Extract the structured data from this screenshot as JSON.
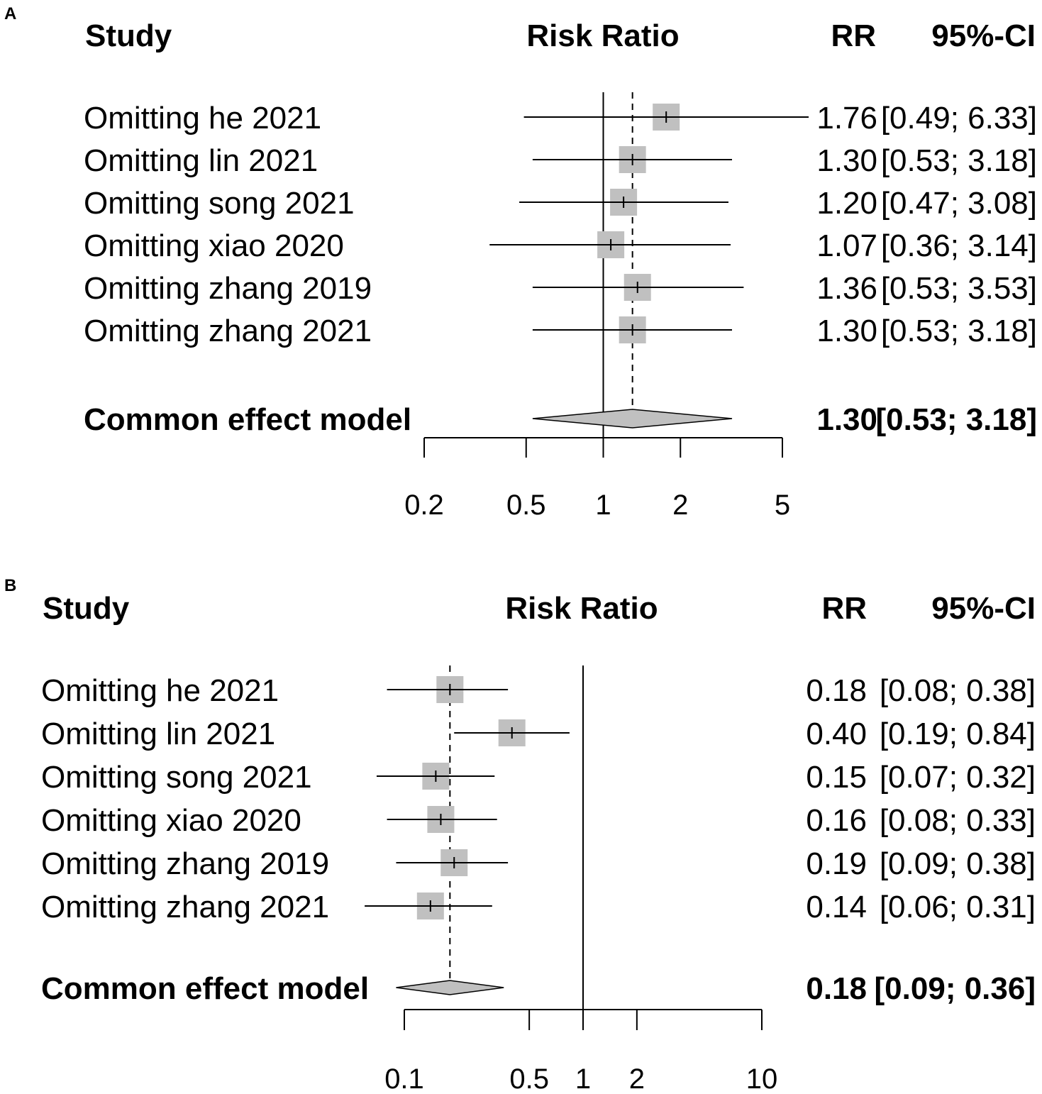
{
  "chart_data": [
    {
      "type": "forest",
      "panel": "A",
      "headers": {
        "study": "Study",
        "effect": "Risk Ratio",
        "rr": "RR",
        "ci": "95%-CI"
      },
      "x_scale": "log",
      "xlim": [
        0.2,
        5
      ],
      "ticks": [
        0.2,
        0.5,
        1,
        2,
        5
      ],
      "tick_labels": [
        "0.2",
        "0.5",
        "1",
        "2",
        "5"
      ],
      "reference_line": 1,
      "pooled_line": 1.3,
      "studies": [
        {
          "label": "Omitting he 2021",
          "rr": 1.76,
          "lo": 0.49,
          "hi": 6.33,
          "rr_text": "1.76",
          "ci_text": "[0.49; 6.33]"
        },
        {
          "label": "Omitting lin 2021",
          "rr": 1.3,
          "lo": 0.53,
          "hi": 3.18,
          "rr_text": "1.30",
          "ci_text": "[0.53; 3.18]"
        },
        {
          "label": "Omitting song 2021",
          "rr": 1.2,
          "lo": 0.47,
          "hi": 3.08,
          "rr_text": "1.20",
          "ci_text": "[0.47; 3.08]"
        },
        {
          "label": "Omitting xiao 2020",
          "rr": 1.07,
          "lo": 0.36,
          "hi": 3.14,
          "rr_text": "1.07",
          "ci_text": "[0.36; 3.14]"
        },
        {
          "label": "Omitting zhang 2019",
          "rr": 1.36,
          "lo": 0.53,
          "hi": 3.53,
          "rr_text": "1.36",
          "ci_text": "[0.53; 3.53]"
        },
        {
          "label": "Omitting zhang 2021",
          "rr": 1.3,
          "lo": 0.53,
          "hi": 3.18,
          "rr_text": "1.30",
          "ci_text": "[0.53; 3.18]"
        }
      ],
      "pooled": {
        "label": "Common effect model",
        "rr": 1.3,
        "lo": 0.53,
        "hi": 3.18,
        "rr_text": "1.30",
        "ci_text": "[0.53; 3.18]"
      }
    },
    {
      "type": "forest",
      "panel": "B",
      "headers": {
        "study": "Study",
        "effect": "Risk Ratio",
        "rr": "RR",
        "ci": "95%-CI"
      },
      "x_scale": "log",
      "xlim": [
        0.1,
        10
      ],
      "ticks": [
        0.1,
        0.5,
        1,
        2,
        10
      ],
      "tick_labels": [
        "0.1",
        "0.5",
        "1",
        "2",
        "10"
      ],
      "reference_line": 1,
      "pooled_line": 0.18,
      "studies": [
        {
          "label": "Omitting he 2021",
          "rr": 0.18,
          "lo": 0.08,
          "hi": 0.38,
          "rr_text": "0.18",
          "ci_text": "[0.08; 0.38]"
        },
        {
          "label": "Omitting lin 2021",
          "rr": 0.4,
          "lo": 0.19,
          "hi": 0.84,
          "rr_text": "0.40",
          "ci_text": "[0.19; 0.84]"
        },
        {
          "label": "Omitting song 2021",
          "rr": 0.15,
          "lo": 0.07,
          "hi": 0.32,
          "rr_text": "0.15",
          "ci_text": "[0.07; 0.32]"
        },
        {
          "label": "Omitting xiao 2020",
          "rr": 0.16,
          "lo": 0.08,
          "hi": 0.33,
          "rr_text": "0.16",
          "ci_text": "[0.08; 0.33]"
        },
        {
          "label": "Omitting zhang 2019",
          "rr": 0.19,
          "lo": 0.09,
          "hi": 0.38,
          "rr_text": "0.19",
          "ci_text": "[0.09; 0.38]"
        },
        {
          "label": "Omitting zhang 2021",
          "rr": 0.14,
          "lo": 0.06,
          "hi": 0.31,
          "rr_text": "0.14",
          "ci_text": "[0.06; 0.31]"
        }
      ],
      "pooled": {
        "label": "Common effect model",
        "rr": 0.18,
        "lo": 0.09,
        "hi": 0.36,
        "rr_text": "0.18",
        "ci_text": "[0.09; 0.36]"
      }
    }
  ],
  "panel_labels": {
    "a": "A",
    "b": "B"
  },
  "colors": {
    "box": "#c0c0c0",
    "line": "#000000"
  }
}
